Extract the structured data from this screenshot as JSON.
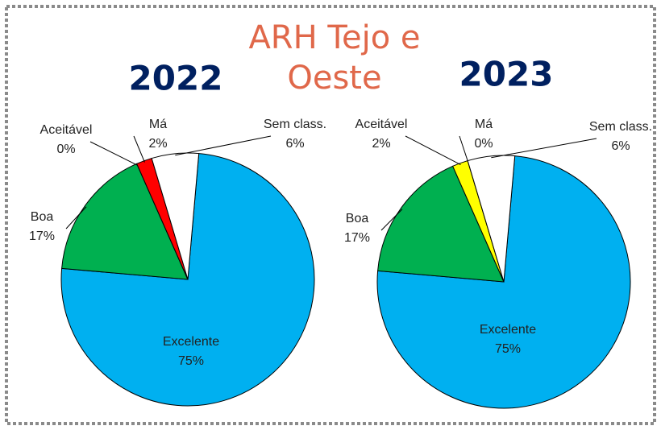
{
  "title": "ARH Tejo e Oeste",
  "chart_data": [
    {
      "type": "pie",
      "title": "2022",
      "categories": [
        "Excelente",
        "Boa",
        "Aceitável",
        "Má",
        "Sem class."
      ],
      "values": [
        75,
        17,
        0,
        2,
        6
      ],
      "value_labels": [
        "75%",
        "17%",
        "0%",
        "2%",
        "6%"
      ],
      "colors": [
        "#00b0f0",
        "#00b050",
        "#ffff00",
        "#ff0000",
        "#ffffff"
      ]
    },
    {
      "type": "pie",
      "title": "2023",
      "categories": [
        "Excelente",
        "Boa",
        "Aceitável",
        "Má",
        "Sem class."
      ],
      "values": [
        75,
        17,
        2,
        0,
        6
      ],
      "value_labels": [
        "75%",
        "17%",
        "2%",
        "0%",
        "6%"
      ],
      "colors": [
        "#00b0f0",
        "#00b050",
        "#ffff00",
        "#ff0000",
        "#ffffff"
      ]
    }
  ]
}
